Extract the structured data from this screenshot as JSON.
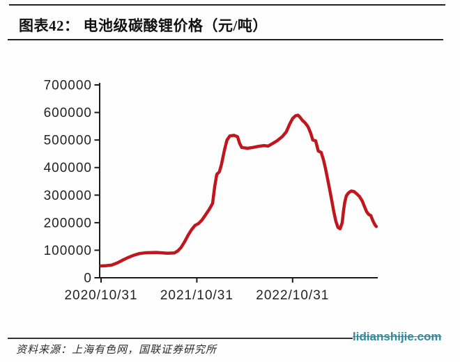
{
  "figure": {
    "label": "图表42：",
    "title": "电池级碳酸锂价格（元/吨）"
  },
  "footer": {
    "source": "资料来源：上海有色网，国联证券研究所",
    "watermark": "lidianshijie.com"
  },
  "colors": {
    "line": "#c0161d",
    "axis": "#1a1a1a",
    "tick_text": "#222222",
    "watermark": "#2d8ca0",
    "rule": "#222222"
  },
  "chart_data": {
    "type": "line",
    "title": "电池级碳酸锂价格（元/吨）",
    "ylabel": "元/吨",
    "grid": false,
    "legend_position": "none",
    "y_axis": {
      "min": 0,
      "max": 700000,
      "tick_interval": 100000,
      "ticks": [
        700000,
        600000,
        500000,
        400000,
        300000,
        200000,
        100000,
        0
      ]
    },
    "x_axis": {
      "start": "2020-10-31",
      "end": "2023-09-15",
      "ticks": [
        "2020/10/31",
        "2021/10/31",
        "2022/10/31"
      ]
    },
    "series": [
      {
        "name": "电池级碳酸锂价格",
        "color": "#c0161d",
        "points": [
          [
            "2020-10-31",
            43000
          ],
          [
            "2020-11-20",
            44000
          ],
          [
            "2020-12-10",
            46000
          ],
          [
            "2021-01-01",
            54000
          ],
          [
            "2021-01-21",
            64000
          ],
          [
            "2021-02-10",
            73000
          ],
          [
            "2021-03-05",
            82000
          ],
          [
            "2021-03-26",
            88000
          ],
          [
            "2021-04-21",
            91000
          ],
          [
            "2021-05-31",
            92000
          ],
          [
            "2021-07-10",
            89000
          ],
          [
            "2021-08-06",
            90000
          ],
          [
            "2021-08-19",
            97000
          ],
          [
            "2021-09-01",
            110000
          ],
          [
            "2021-09-14",
            130000
          ],
          [
            "2021-09-28",
            155000
          ],
          [
            "2021-10-11",
            175000
          ],
          [
            "2021-10-24",
            190000
          ],
          [
            "2021-11-07",
            197000
          ],
          [
            "2021-11-20",
            210000
          ],
          [
            "2021-12-03",
            228000
          ],
          [
            "2021-12-17",
            248000
          ],
          [
            "2021-12-30",
            270000
          ],
          [
            "2022-01-07",
            330000
          ],
          [
            "2022-01-15",
            375000
          ],
          [
            "2022-01-25",
            385000
          ],
          [
            "2022-02-02",
            412000
          ],
          [
            "2022-02-13",
            462000
          ],
          [
            "2022-02-23",
            500000
          ],
          [
            "2022-03-06",
            515000
          ],
          [
            "2022-03-22",
            517000
          ],
          [
            "2022-04-04",
            512000
          ],
          [
            "2022-04-12",
            488000
          ],
          [
            "2022-04-20",
            473000
          ],
          [
            "2022-05-12",
            470000
          ],
          [
            "2022-06-02",
            473000
          ],
          [
            "2022-06-23",
            477000
          ],
          [
            "2022-07-14",
            480000
          ],
          [
            "2022-07-30",
            478000
          ],
          [
            "2022-08-15",
            487000
          ],
          [
            "2022-09-03",
            498000
          ],
          [
            "2022-09-21",
            512000
          ],
          [
            "2022-10-07",
            530000
          ],
          [
            "2022-10-21",
            560000
          ],
          [
            "2022-10-31",
            578000
          ],
          [
            "2022-11-11",
            588000
          ],
          [
            "2022-11-21",
            590000
          ],
          [
            "2022-11-29",
            582000
          ],
          [
            "2022-12-07",
            572000
          ],
          [
            "2022-12-18",
            562000
          ],
          [
            "2022-12-29",
            548000
          ],
          [
            "2023-01-08",
            525000
          ],
          [
            "2023-01-16",
            500000
          ],
          [
            "2023-01-27",
            497000
          ],
          [
            "2023-02-06",
            460000
          ],
          [
            "2023-02-17",
            455000
          ],
          [
            "2023-02-25",
            430000
          ],
          [
            "2023-03-05",
            398000
          ],
          [
            "2023-03-13",
            360000
          ],
          [
            "2023-03-21",
            322000
          ],
          [
            "2023-03-29",
            282000
          ],
          [
            "2023-04-06",
            240000
          ],
          [
            "2023-04-14",
            205000
          ],
          [
            "2023-04-22",
            183000
          ],
          [
            "2023-04-30",
            178000
          ],
          [
            "2023-05-08",
            200000
          ],
          [
            "2023-05-13",
            242000
          ],
          [
            "2023-05-18",
            275000
          ],
          [
            "2023-05-24",
            298000
          ],
          [
            "2023-06-01",
            308000
          ],
          [
            "2023-06-11",
            315000
          ],
          [
            "2023-06-22",
            313000
          ],
          [
            "2023-07-02",
            305000
          ],
          [
            "2023-07-13",
            295000
          ],
          [
            "2023-07-24",
            278000
          ],
          [
            "2023-08-01",
            258000
          ],
          [
            "2023-08-09",
            240000
          ],
          [
            "2023-08-17",
            230000
          ],
          [
            "2023-08-25",
            226000
          ],
          [
            "2023-09-02",
            207000
          ],
          [
            "2023-09-10",
            192000
          ],
          [
            "2023-09-15",
            186000
          ]
        ]
      }
    ]
  }
}
